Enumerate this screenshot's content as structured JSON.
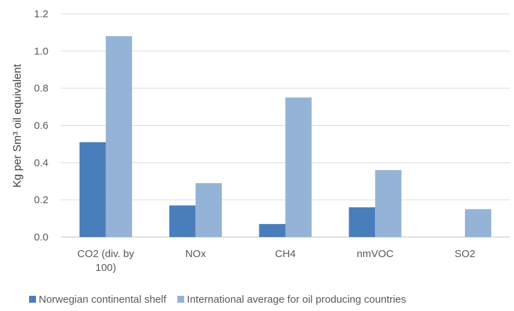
{
  "chart_data": {
    "type": "bar",
    "title": "",
    "xlabel": "",
    "ylabel": "Kg per Sm³ oil equivalent",
    "ylim": [
      0,
      1.2
    ],
    "yticks": [
      "0.0",
      "0.2",
      "0.4",
      "0.6",
      "0.8",
      "1.0",
      "1.2"
    ],
    "grid": true,
    "legend_position": "bottom",
    "categories": [
      [
        "CO2 (div. by",
        "100)"
      ],
      [
        "NOx"
      ],
      [
        "CH4"
      ],
      [
        "nmVOC"
      ],
      [
        "SO2"
      ]
    ],
    "series": [
      {
        "name": "Norwegian continental shelf",
        "color": "#4a7ebb",
        "values": [
          0.51,
          0.17,
          0.07,
          0.16,
          0
        ]
      },
      {
        "name": "International average for oil producing countries",
        "color": "#95b3d7",
        "values": [
          1.08,
          0.29,
          0.75,
          0.36,
          0.15
        ]
      }
    ]
  }
}
